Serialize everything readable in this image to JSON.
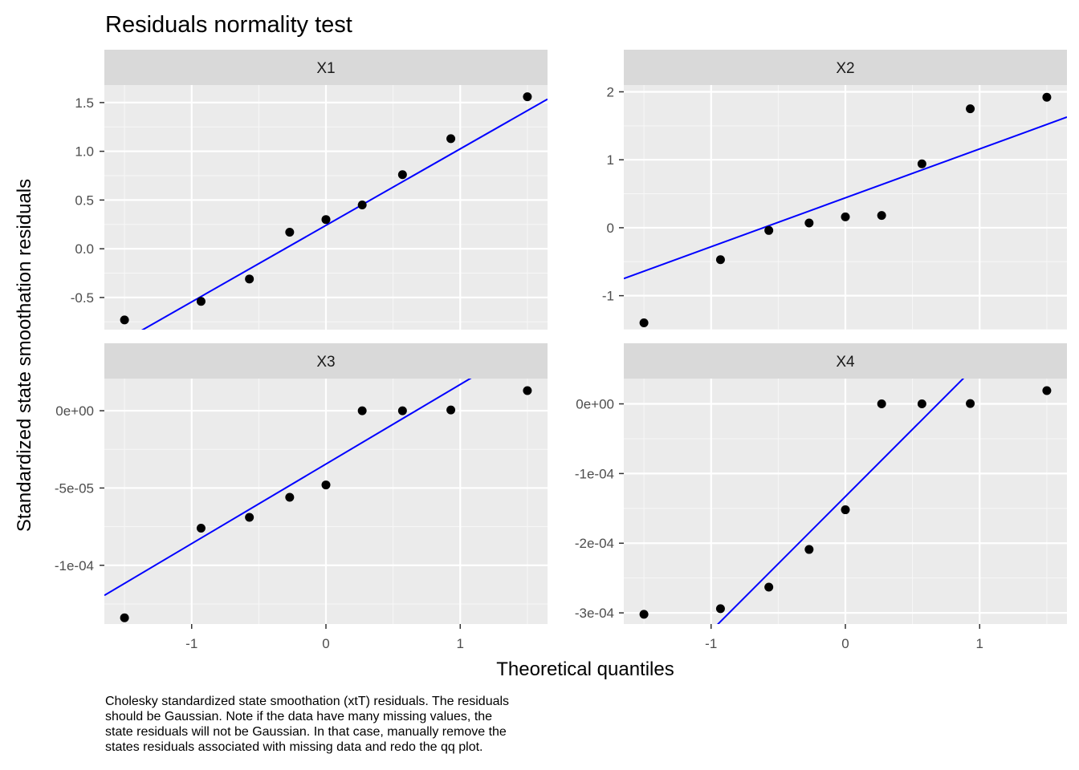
{
  "chart_data": {
    "type": "scatter",
    "title": "Residuals normality test",
    "xlabel": "Theoretical quantiles",
    "ylabel": "Standardized state smoothation residuals",
    "caption_lines": [
      "Cholesky standardized state smoothation (xtT) residuals. The residuals",
      "should be Gaussian. Note if the data have many missing values, the",
      "state residuals will not be Gaussian. In that case, manually remove the",
      "states residuals associated with missing data and redo the qq plot."
    ],
    "x_range": [
      -1.65,
      1.65
    ],
    "x_ticks": [
      -1,
      0,
      1
    ],
    "x_tick_labels": [
      "-1",
      "0",
      "1"
    ],
    "grid": true,
    "point_color": "#000000",
    "line_color": "#0000ff",
    "strip_color": "#d9d9d9",
    "panel_bg": "#ebebeb",
    "panels": [
      {
        "name": "X1",
        "ylim": [
          -0.83,
          1.68
        ],
        "y_ticks": [
          -0.5,
          0,
          0.5,
          1,
          1.5
        ],
        "y_tick_labels": [
          "-0.5",
          "0.0",
          "0.5",
          "1.0",
          "1.5"
        ],
        "points": {
          "x": [
            -1.5,
            -0.93,
            -0.57,
            -0.27,
            0,
            0.27,
            0.57,
            0.93,
            1.5
          ],
          "y": [
            -0.73,
            -0.54,
            -0.31,
            0.17,
            0.3,
            0.45,
            0.76,
            1.13,
            1.56
          ]
        },
        "line": {
          "intercept": 0.24,
          "slope": 0.785
        }
      },
      {
        "name": "X2",
        "ylim": [
          -1.5,
          2.1
        ],
        "y_ticks": [
          -1,
          0,
          1,
          2
        ],
        "y_tick_labels": [
          "-1",
          "0",
          "1",
          "2"
        ],
        "points": {
          "x": [
            -1.5,
            -0.93,
            -0.57,
            -0.27,
            0,
            0.27,
            0.57,
            0.93,
            1.5
          ],
          "y": [
            -1.4,
            -0.47,
            -0.04,
            0.07,
            0.16,
            0.18,
            0.94,
            1.75,
            1.92
          ]
        },
        "line": {
          "intercept": 0.44,
          "slope": 0.72
        }
      },
      {
        "name": "X3",
        "ylim": [
          -0.000138,
          2.08e-05
        ],
        "y_ticks": [
          -0.0001,
          -5e-05,
          0
        ],
        "y_tick_labels": [
          "-1e-04",
          "-5e-05",
          "0e+00"
        ],
        "points": {
          "x": [
            -1.5,
            -0.93,
            -0.57,
            -0.27,
            0,
            0.27,
            0.57,
            0.93,
            1.5
          ],
          "y": [
            -0.000134,
            -7.6e-05,
            -6.9e-05,
            -5.6e-05,
            -4.8e-05,
            0.0,
            0.0,
            5e-07,
            1.3e-05
          ]
        },
        "line": {
          "intercept": -3.45e-05,
          "slope": 5.15e-05
        }
      },
      {
        "name": "X4",
        "ylim": [
          -0.000316,
          3.63e-05
        ],
        "y_ticks": [
          -0.0003,
          -0.0002,
          -0.0001,
          0
        ],
        "y_tick_labels": [
          "-3e-04",
          "-2e-04",
          "-1e-04",
          "0e+00"
        ],
        "points": {
          "x": [
            -1.5,
            -0.93,
            -0.57,
            -0.27,
            0,
            0.27,
            0.57,
            0.93,
            1.5
          ],
          "y": [
            -0.000302,
            -0.000294,
            -0.000263,
            -0.000209,
            -0.000152,
            0.0,
            0.0,
            5e-07,
            1.9e-05
          ]
        },
        "line": {
          "intercept": -0.000133,
          "slope": 0.000193
        }
      }
    ]
  }
}
